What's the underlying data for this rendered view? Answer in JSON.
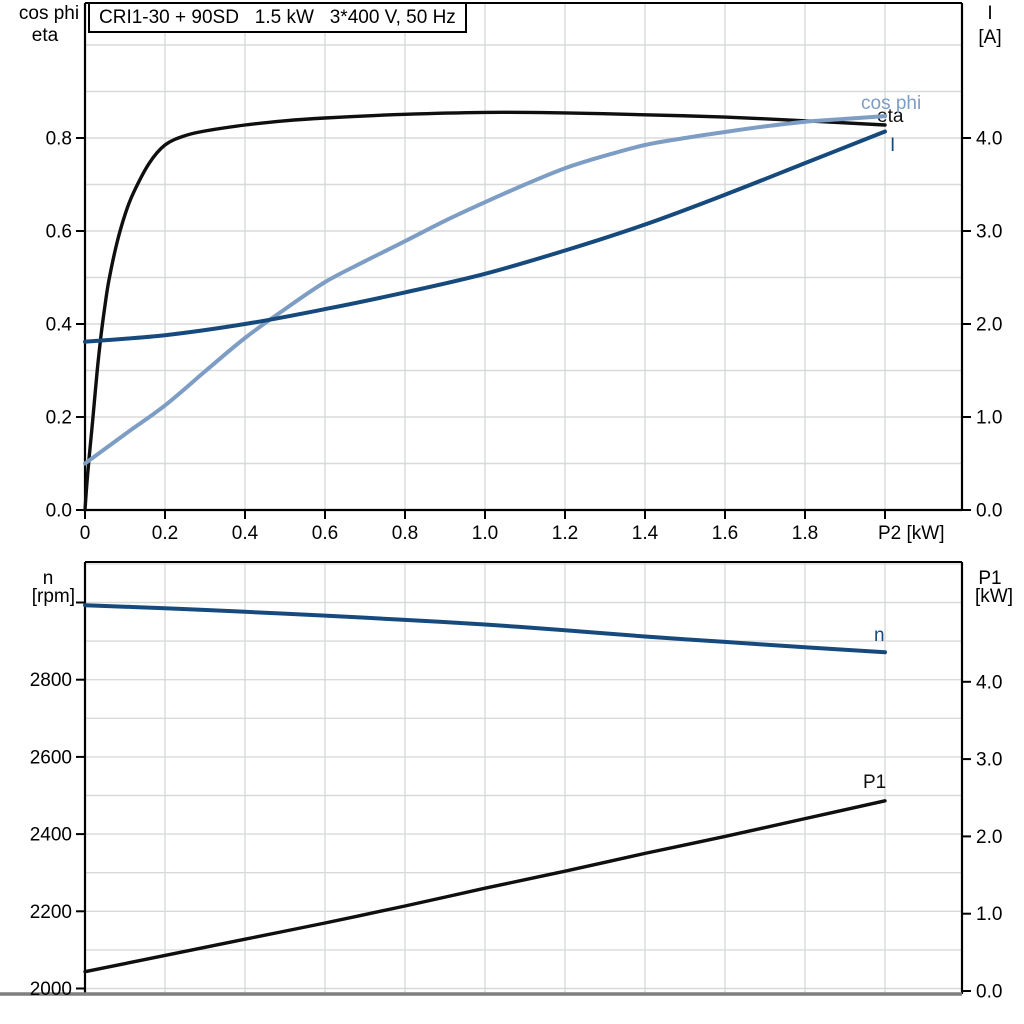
{
  "title": "CRI1-30 + 90SD   1.5 kW   3*400 V, 50 Hz",
  "colors": {
    "eta_black": "#0f0f0f",
    "current_blue": "#164a7d",
    "cosphi_blue": "#7d9dc4",
    "grid": "#d8dada",
    "axis": "#000000",
    "bottom_edge": "#7f7f7f",
    "text": "#000000"
  },
  "chart_data": [
    {
      "type": "line",
      "title": "CRI1-30 + 90SD   1.5 kW   3*400 V, 50 Hz",
      "x_axis": {
        "label": "P2 [kW]",
        "min": 0,
        "max": 2.19,
        "grid": [
          0.2,
          0.4,
          0.6,
          0.8,
          1.0,
          1.2,
          1.4,
          1.6,
          1.8,
          2.0
        ],
        "ticks": [
          {
            "v": 0,
            "t": "0"
          },
          {
            "v": 0.2,
            "t": "0.2"
          },
          {
            "v": 0.4,
            "t": "0.4"
          },
          {
            "v": 0.6,
            "t": "0.6"
          },
          {
            "v": 0.8,
            "t": "0.8"
          },
          {
            "v": 1.0,
            "t": "1.0"
          },
          {
            "v": 1.2,
            "t": "1.2"
          },
          {
            "v": 1.4,
            "t": "1.4"
          },
          {
            "v": 1.6,
            "t": "1.6"
          },
          {
            "v": 1.8,
            "t": "1.8"
          },
          {
            "v": 2.0,
            "t": "P2 [kW]",
            "unit": true
          }
        ]
      },
      "left_axis": {
        "title_lines": [
          "cos phi",
          "eta"
        ],
        "min": 0,
        "max": 1.09,
        "grid": [
          0.1,
          0.2,
          0.3,
          0.4,
          0.5,
          0.6,
          0.7,
          0.8,
          0.9,
          1.0
        ],
        "ticks": [
          {
            "v": 0,
            "t": "0.0"
          },
          {
            "v": 0.2,
            "t": "0.2"
          },
          {
            "v": 0.4,
            "t": "0.4"
          },
          {
            "v": 0.6,
            "t": "0.6"
          },
          {
            "v": 0.8,
            "t": "0.8"
          }
        ]
      },
      "right_axis": {
        "title_lines": [
          "I",
          "[A]"
        ],
        "min": 0,
        "max": 5.46,
        "ticks": [
          {
            "v": 0,
            "t": "0.0"
          },
          {
            "v": 1,
            "t": "1.0"
          },
          {
            "v": 2,
            "t": "2.0"
          },
          {
            "v": 3,
            "t": "3.0"
          },
          {
            "v": 4,
            "t": "4.0"
          }
        ]
      },
      "series": [
        {
          "name": "eta",
          "label": "eta",
          "axis": "left",
          "color": "#0f0f0f",
          "x": [
            0,
            0.005,
            0.01,
            0.02,
            0.03,
            0.04,
            0.05,
            0.06,
            0.08,
            0.1,
            0.12,
            0.16,
            0.2,
            0.25,
            0.3,
            0.4,
            0.5,
            0.6,
            0.8,
            1.0,
            1.2,
            1.4,
            1.6,
            1.8,
            2.0
          ],
          "y": [
            0,
            0.06,
            0.11,
            0.2,
            0.295,
            0.375,
            0.44,
            0.495,
            0.575,
            0.635,
            0.68,
            0.745,
            0.785,
            0.805,
            0.815,
            0.828,
            0.837,
            0.843,
            0.851,
            0.855,
            0.854,
            0.85,
            0.845,
            0.837,
            0.828
          ]
        },
        {
          "name": "cos phi",
          "label": "cos phi",
          "axis": "left",
          "color": "#7d9dc4",
          "x": [
            0,
            0.1,
            0.2,
            0.3,
            0.4,
            0.5,
            0.6,
            0.7,
            0.8,
            0.9,
            1.0,
            1.1,
            1.2,
            1.3,
            1.4,
            1.5,
            1.6,
            1.7,
            1.8,
            1.9,
            2.0
          ],
          "y": [
            0.1,
            0.163,
            0.225,
            0.298,
            0.37,
            0.432,
            0.49,
            0.535,
            0.578,
            0.622,
            0.662,
            0.7,
            0.735,
            0.762,
            0.785,
            0.8,
            0.813,
            0.825,
            0.835,
            0.841,
            0.847
          ]
        },
        {
          "name": "I",
          "label": "I",
          "axis": "right",
          "color": "#164a7d",
          "x": [
            0,
            0.2,
            0.4,
            0.6,
            0.8,
            1.0,
            1.2,
            1.4,
            1.6,
            1.8,
            2.0
          ],
          "y": [
            1.81,
            1.88,
            2.0,
            2.16,
            2.34,
            2.54,
            2.79,
            3.07,
            3.39,
            3.73,
            4.07
          ]
        }
      ]
    },
    {
      "type": "line",
      "title": "",
      "x_axis": {
        "label": "",
        "min": 0,
        "max": 2.19,
        "grid": [
          0.2,
          0.4,
          0.6,
          0.8,
          1.0,
          1.2,
          1.4,
          1.6,
          1.8,
          2.0
        ],
        "ticks": []
      },
      "left_axis": {
        "title_lines": [
          "n",
          "[rpm]"
        ],
        "min": 1986,
        "max": 3105,
        "grid": [
          2000,
          2100,
          2200,
          2300,
          2400,
          2500,
          2600,
          2700,
          2800,
          2900,
          3000,
          3100
        ],
        "ticks": [
          {
            "v": 3000,
            "t": ""
          },
          {
            "v": 2800,
            "t": "2800"
          },
          {
            "v": 2600,
            "t": "2600"
          },
          {
            "v": 2400,
            "t": "2400"
          },
          {
            "v": 2200,
            "t": "2200"
          },
          {
            "v": 2000,
            "t": "2000"
          }
        ]
      },
      "right_axis": {
        "title_lines": [
          "P1",
          "[kW]"
        ],
        "min": 0,
        "max": 5.55,
        "ticks": [
          {
            "v": 0,
            "t": "0.0"
          },
          {
            "v": 1,
            "t": "1.0"
          },
          {
            "v": 2,
            "t": "2.0"
          },
          {
            "v": 3,
            "t": "3.0"
          },
          {
            "v": 4,
            "t": "4.0"
          }
        ]
      },
      "series": [
        {
          "name": "n",
          "label": "n",
          "axis": "left",
          "color": "#164a7d",
          "x": [
            0,
            0.2,
            0.4,
            0.6,
            0.8,
            1.0,
            1.2,
            1.4,
            1.6,
            1.8,
            2.0
          ],
          "y": [
            2993,
            2985,
            2976,
            2966,
            2955,
            2943,
            2928,
            2912,
            2898,
            2884,
            2871
          ]
        },
        {
          "name": "P1",
          "label": "P1",
          "axis": "right",
          "color": "#0f0f0f",
          "x": [
            0,
            0.2,
            0.4,
            0.6,
            0.8,
            1.0,
            1.2,
            1.4,
            1.6,
            1.8,
            2.0
          ],
          "y": [
            0.25,
            0.46,
            0.67,
            0.88,
            1.1,
            1.33,
            1.55,
            1.78,
            2.0,
            2.23,
            2.46
          ]
        }
      ]
    }
  ]
}
